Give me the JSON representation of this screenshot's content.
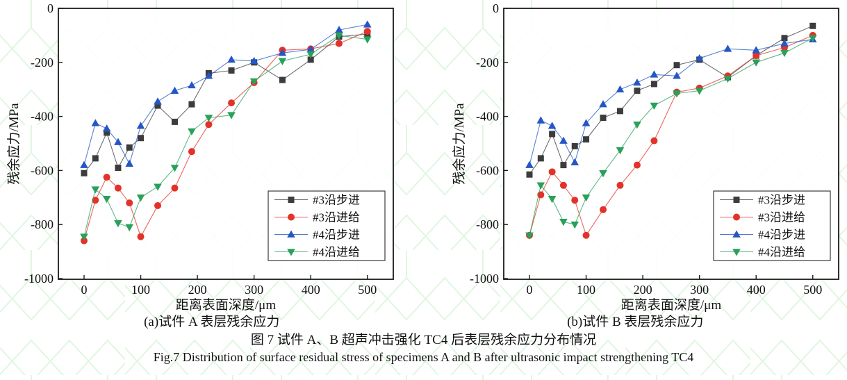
{
  "figure": {
    "caption_zh": "图 7  试件 A、B 超声冲击强化 TC4 后表层残余应力分布情况",
    "caption_en": "Fig.7 Distribution of surface residual stress of specimens A and B after ultrasonic impact strengthening TC4"
  },
  "colors": {
    "axis": "#1a1a1a",
    "watermark": "#8fe08f",
    "series_black": "#3c3c3c",
    "series_red": "#e23229",
    "series_blue": "#2457c5",
    "series_green": "#2aa05a"
  },
  "chart_data": [
    {
      "type": "line",
      "title": "(a)试件 A 表层残余应力",
      "xlabel": "距离表面深度/μm",
      "ylabel": "残余应力/MPa",
      "xlim": [
        -45,
        545
      ],
      "ylim": [
        -1000,
        0
      ],
      "x_ticks": [
        0,
        100,
        200,
        300,
        400,
        500
      ],
      "y_ticks": [
        0,
        -200,
        -400,
        -600,
        -800,
        -1000
      ],
      "grid": false,
      "legend_position": "lower right",
      "x": [
        0,
        20,
        40,
        60,
        80,
        100,
        130,
        160,
        190,
        220,
        260,
        300,
        350,
        400,
        450,
        500
      ],
      "series": [
        {
          "name": "#3沿步进",
          "marker": "square",
          "color": "#3c3c3c",
          "values": [
            -610,
            -555,
            -460,
            -590,
            -515,
            -480,
            -360,
            -420,
            -355,
            -240,
            -230,
            -200,
            -265,
            -190,
            -105,
            -95
          ]
        },
        {
          "name": "#3沿进给",
          "marker": "circle",
          "color": "#e23229",
          "values": [
            -860,
            -710,
            -625,
            -665,
            -720,
            -845,
            -730,
            -665,
            -530,
            -430,
            -350,
            -275,
            -155,
            -150,
            -130,
            -85
          ]
        },
        {
          "name": "#4沿步进",
          "marker": "triangle-up",
          "color": "#2457c5",
          "values": [
            -580,
            -425,
            -445,
            -495,
            -575,
            -435,
            -345,
            -305,
            -285,
            -250,
            -190,
            -195,
            -165,
            -152,
            -80,
            -60
          ]
        },
        {
          "name": "#4沿进给",
          "marker": "triangle-down",
          "color": "#2aa05a",
          "values": [
            -845,
            -670,
            -705,
            -795,
            -810,
            -700,
            -660,
            -590,
            -455,
            -405,
            -395,
            -270,
            -195,
            -170,
            -100,
            -115
          ]
        }
      ]
    },
    {
      "type": "line",
      "title": "(b)试件 B 表层残余应力",
      "xlabel": "距离表面深度/μm",
      "ylabel": "残余应力/MPa",
      "xlim": [
        -45,
        545
      ],
      "ylim": [
        -1000,
        0
      ],
      "x_ticks": [
        0,
        100,
        200,
        300,
        400,
        500
      ],
      "y_ticks": [
        0,
        -200,
        -400,
        -600,
        -800,
        -1000
      ],
      "grid": false,
      "legend_position": "lower right",
      "x": [
        0,
        20,
        40,
        60,
        80,
        100,
        130,
        160,
        190,
        220,
        260,
        300,
        350,
        400,
        450,
        500
      ],
      "series": [
        {
          "name": "#3沿步进",
          "marker": "square",
          "color": "#3c3c3c",
          "values": [
            -615,
            -555,
            -465,
            -580,
            -510,
            -485,
            -405,
            -380,
            -305,
            -280,
            -210,
            -190,
            -255,
            -175,
            -110,
            -65
          ]
        },
        {
          "name": "#3沿进给",
          "marker": "circle",
          "color": "#e23229",
          "values": [
            -840,
            -690,
            -605,
            -655,
            -710,
            -840,
            -745,
            -655,
            -580,
            -490,
            -310,
            -295,
            -250,
            -175,
            -145,
            -100
          ]
        },
        {
          "name": "#4沿步进",
          "marker": "triangle-up",
          "color": "#2457c5",
          "values": [
            -580,
            -415,
            -435,
            -490,
            -570,
            -425,
            -355,
            -300,
            -275,
            -245,
            -250,
            -185,
            -150,
            -155,
            -130,
            -115
          ]
        },
        {
          "name": "#4沿进给",
          "marker": "triangle-down",
          "color": "#2aa05a",
          "values": [
            -840,
            -655,
            -705,
            -790,
            -800,
            -700,
            -610,
            -525,
            -430,
            -360,
            -315,
            -305,
            -260,
            -200,
            -165,
            -110
          ]
        }
      ]
    }
  ]
}
